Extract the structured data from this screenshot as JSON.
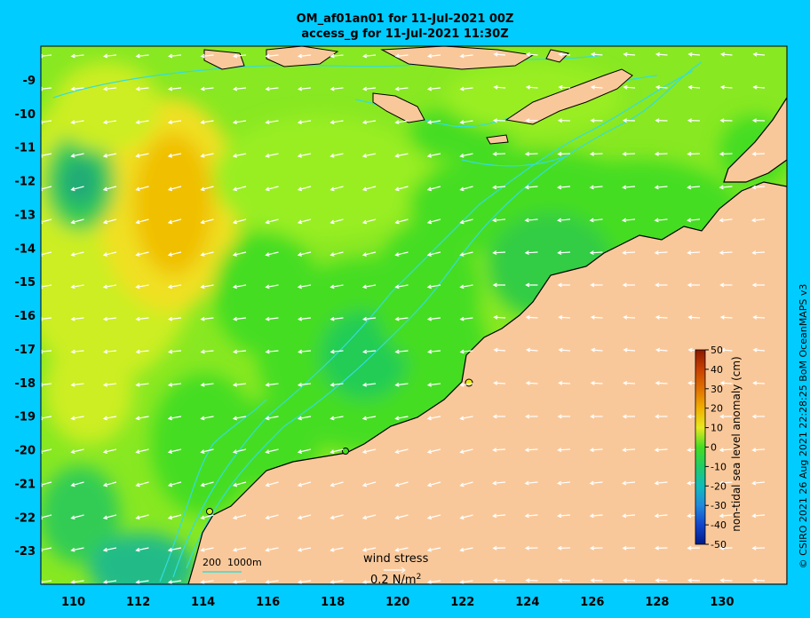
{
  "title": {
    "line1": "OM_af01an01 for 11-Jul-2021 00Z",
    "line2": "access_g for 11-Jul-2021 11:30Z"
  },
  "credit": "© CSIRO 2021  26 Aug 2021 22:28:25 BoM OceanMAPS v3",
  "axes": {
    "x_ticks": [
      "110",
      "112",
      "114",
      "116",
      "118",
      "120",
      "122",
      "124",
      "126",
      "128",
      "130"
    ],
    "y_ticks": [
      "-9",
      "-10",
      "-11",
      "-12",
      "-13",
      "-14",
      "-15",
      "-16",
      "-17",
      "-18",
      "-19",
      "-20",
      "-21",
      "-22",
      "-23"
    ],
    "xlim": [
      109.0,
      132.0
    ],
    "ylim": [
      -24.0,
      -8.0
    ]
  },
  "colorbar": {
    "title": "non-tidal sea level anomaly (cm)",
    "ticks": [
      "50",
      "40",
      "30",
      "20",
      "10",
      "0",
      "-10",
      "-20",
      "-30",
      "-40",
      "-50"
    ],
    "range": [
      -50,
      50
    ]
  },
  "scale_bar": {
    "label_200": "200",
    "label_1000": "1000m"
  },
  "wind_key": {
    "label": "wind stress",
    "value": "0.2 N/m",
    "unit_exp": "2"
  },
  "colors": {
    "land": "#f9c89a",
    "coast": "#000000",
    "contour": "#33dddd",
    "background": "#00ccff",
    "green_dark": "#22cc44",
    "green": "#44dd22",
    "lime": "#99ee22",
    "yellow_green": "#ccee22",
    "yellow": "#f0e020",
    "orange": "#f0c000"
  }
}
